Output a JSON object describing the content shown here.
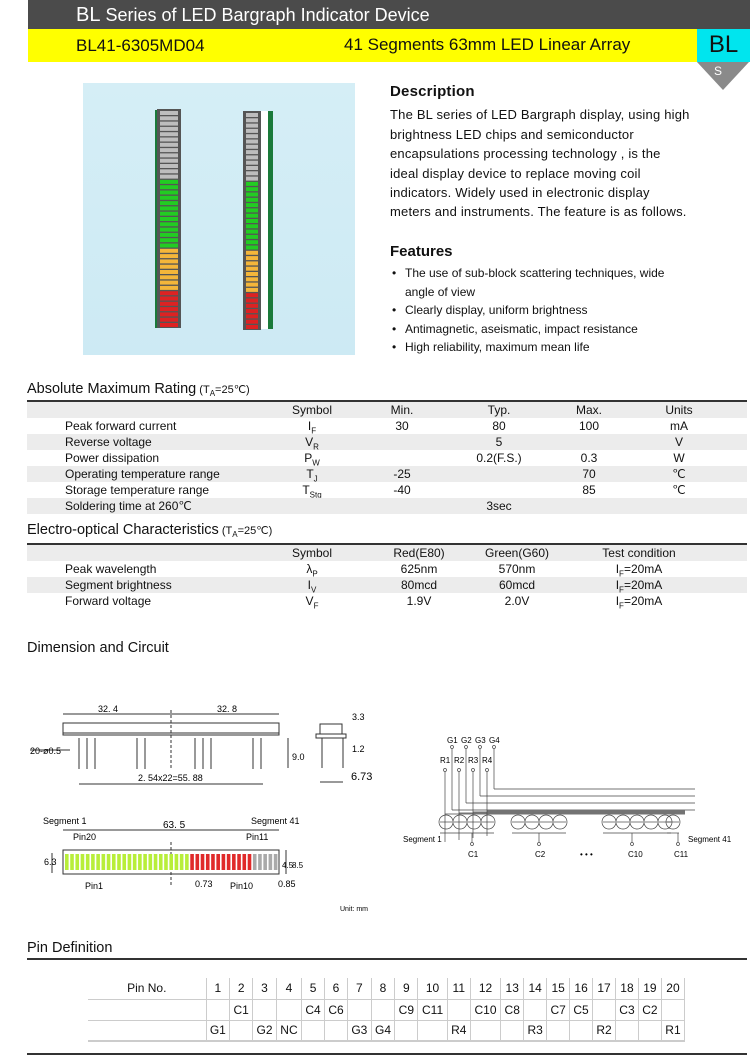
{
  "header": {
    "brand": "BL",
    "title": "Series of LED Bargraph Indicator Device",
    "part": "BL41-6305MD04",
    "subtitle": "41 Segments 63mm LED Linear Array",
    "badge": "BL",
    "badge_sub": "S"
  },
  "colors": {
    "header_bg": "#4b4b4b",
    "yellow": "#ffff00",
    "cyan": "#00e5ee",
    "led_green": "#22cc22",
    "led_yellow": "#f4b63a",
    "led_red": "#dd2222",
    "led_grey": "#bdbdbd"
  },
  "description": {
    "title": "Description",
    "text": "The BL series of LED Bargraph display, using high brightness LED chips and semiconductor encapsulations processing technology , is the ideal display device to replace moving coil indicators. Widely used in electronic display meters and instruments. The feature is as follows."
  },
  "features": {
    "title": "Features",
    "items": [
      "The use of sub-block scattering techniques, wide angle of view",
      "Clearly display, uniform brightness",
      "Antimagnetic, aseismatic, impact resistance",
      "High reliability, maximum mean life"
    ]
  },
  "abs_max": {
    "title": "Absolute Maximum Rating",
    "cond": "(TA=25℃)",
    "headers": [
      "Symbol",
      "Min.",
      "Typ.",
      "Max.",
      "Units"
    ],
    "rows": [
      [
        "Peak forward current",
        "IF",
        "30",
        "80",
        "100",
        "mA"
      ],
      [
        "Reverse voltage",
        "VR",
        "",
        "5",
        "",
        "V"
      ],
      [
        "Power dissipation",
        "PW",
        "",
        "0.2(F.S.)",
        "0.3",
        "W"
      ],
      [
        "Operating temperature range",
        "TJ",
        "-25",
        "",
        "70",
        "℃"
      ],
      [
        "Storage temperature range",
        "TStg",
        "-40",
        "",
        "85",
        "℃"
      ],
      [
        "Soldering time at 260℃",
        "",
        "",
        "3sec",
        "",
        ""
      ]
    ]
  },
  "electro": {
    "title": "Electro-optical Characteristics",
    "cond": "(TA=25℃)",
    "headers": [
      "Symbol",
      "Red(E80)",
      "Green(G60)",
      "Test condition"
    ],
    "rows": [
      [
        "Peak wavelength",
        "λP",
        "625nm",
        "570nm",
        "IF=20mA"
      ],
      [
        "Segment brightness",
        "IV",
        "80mcd",
        "60mcd",
        "IF=20mA"
      ],
      [
        "Forward voltage",
        "VF",
        "1.9V",
        "2.0V",
        "IF=20mA"
      ]
    ]
  },
  "dimension": {
    "title": "Dimension and Circuit",
    "d1": "32. 4",
    "d2": "32. 8",
    "pins": "20-ø0.5",
    "pitch": "2. 54x22=55. 88",
    "h9": "9.0",
    "h33": "3.3",
    "h12": "1.2",
    "w673": "6.73",
    "seg1": "Segment 1",
    "seg41": "Segment 41",
    "len": "63. 5",
    "pin20": "Pin20",
    "pin11": "Pin11",
    "pin1": "Pin1",
    "pin10": "Pin10",
    "d073": "0.73",
    "d085": "0.85",
    "h63": "6.3",
    "h45": "4.5",
    "h85": "8.5",
    "unit": "Unit: mm"
  },
  "circuit": {
    "g": [
      "G1",
      "G2",
      "G3",
      "G4"
    ],
    "r": [
      "R1",
      "R2",
      "R3",
      "R4"
    ],
    "c": [
      "C1",
      "C2",
      "C10",
      "C11"
    ],
    "dots": "• • •",
    "seg1": "Segment 1",
    "seg41": "Segment 41"
  },
  "pin_def": {
    "title": "Pin Definition",
    "label": "Pin No.",
    "numbers": [
      "1",
      "2",
      "3",
      "4",
      "5",
      "6",
      "7",
      "8",
      "9",
      "10",
      "11",
      "12",
      "13",
      "14",
      "15",
      "16",
      "17",
      "18",
      "19",
      "20"
    ],
    "row_c": [
      "",
      "C1",
      "",
      "",
      "C4",
      "C6",
      "",
      "",
      "C9",
      "C11",
      "",
      "C10",
      "C8",
      "",
      "C7",
      "C5",
      "",
      "C3",
      "C2",
      ""
    ],
    "row_a": [
      "G1",
      "",
      "G2",
      "NC",
      "",
      "",
      "G3",
      "G4",
      "",
      "",
      "R4",
      "",
      "",
      "R3",
      "",
      "",
      "R2",
      "",
      "",
      "R1"
    ]
  }
}
